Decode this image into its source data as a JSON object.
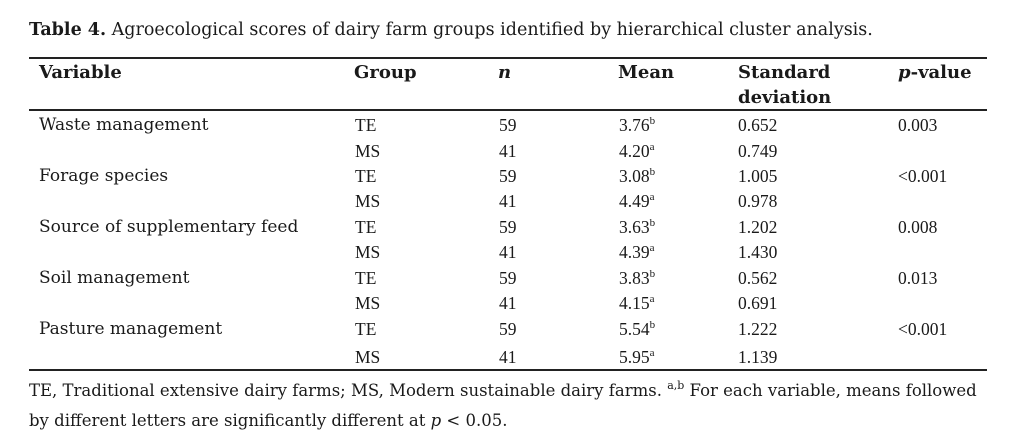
{
  "caption": {
    "label": "Table 4.",
    "text": " Agroecological scores of dairy farm groups identified by hierarchical cluster analysis."
  },
  "headers": {
    "variable": "Variable",
    "group": "Group",
    "n": "n",
    "mean": "Mean",
    "sd_line1": "Standard",
    "sd_line2": "deviation",
    "p_italic": "p",
    "p_rest": "-value"
  },
  "rows": [
    {
      "variable": "Waste management",
      "group": "TE",
      "n": "59",
      "mean": "3.76",
      "sup": "b",
      "sd": "0.652",
      "p": "0.003"
    },
    {
      "variable": "",
      "group": "MS",
      "n": "41",
      "mean": "4.20",
      "sup": "a",
      "sd": "0.749",
      "p": ""
    },
    {
      "variable": "Forage species",
      "group": "TE",
      "n": "59",
      "mean": "3.08",
      "sup": "b",
      "sd": "1.005",
      "p": "<0.001"
    },
    {
      "variable": "",
      "group": "MS",
      "n": "41",
      "mean": "4.49",
      "sup": "a",
      "sd": "0.978",
      "p": ""
    },
    {
      "variable": "Source of supplementary feed",
      "group": "TE",
      "n": "59",
      "mean": "3.63",
      "sup": "b",
      "sd": "1.202",
      "p": "0.008"
    },
    {
      "variable": "",
      "group": "MS",
      "n": "41",
      "mean": "4.39",
      "sup": "a",
      "sd": "1.430",
      "p": ""
    },
    {
      "variable": "Soil management",
      "group": "TE",
      "n": "59",
      "mean": "3.83",
      "sup": "b",
      "sd": "0.562",
      "p": "0.013"
    },
    {
      "variable": "",
      "group": "MS",
      "n": "41",
      "mean": "4.15",
      "sup": "a",
      "sd": "0.691",
      "p": ""
    },
    {
      "variable": "Pasture management",
      "group": "TE",
      "n": "59",
      "mean": "5.54",
      "sup": "b",
      "sd": "1.222",
      "p": "<0.001"
    },
    {
      "variable": "",
      "group": "MS",
      "n": "41",
      "mean": "5.95",
      "sup": "a",
      "sd": "1.139",
      "p": ""
    }
  ],
  "footnote": {
    "part1": "TE, Traditional extensive dairy farms; MS, Modern sustainable dairy farms. ",
    "sup": "a,b",
    "part2": " For each variable, means followed by different letters are significantly different at ",
    "p_italic": "p",
    "part3": " < 0.05."
  }
}
